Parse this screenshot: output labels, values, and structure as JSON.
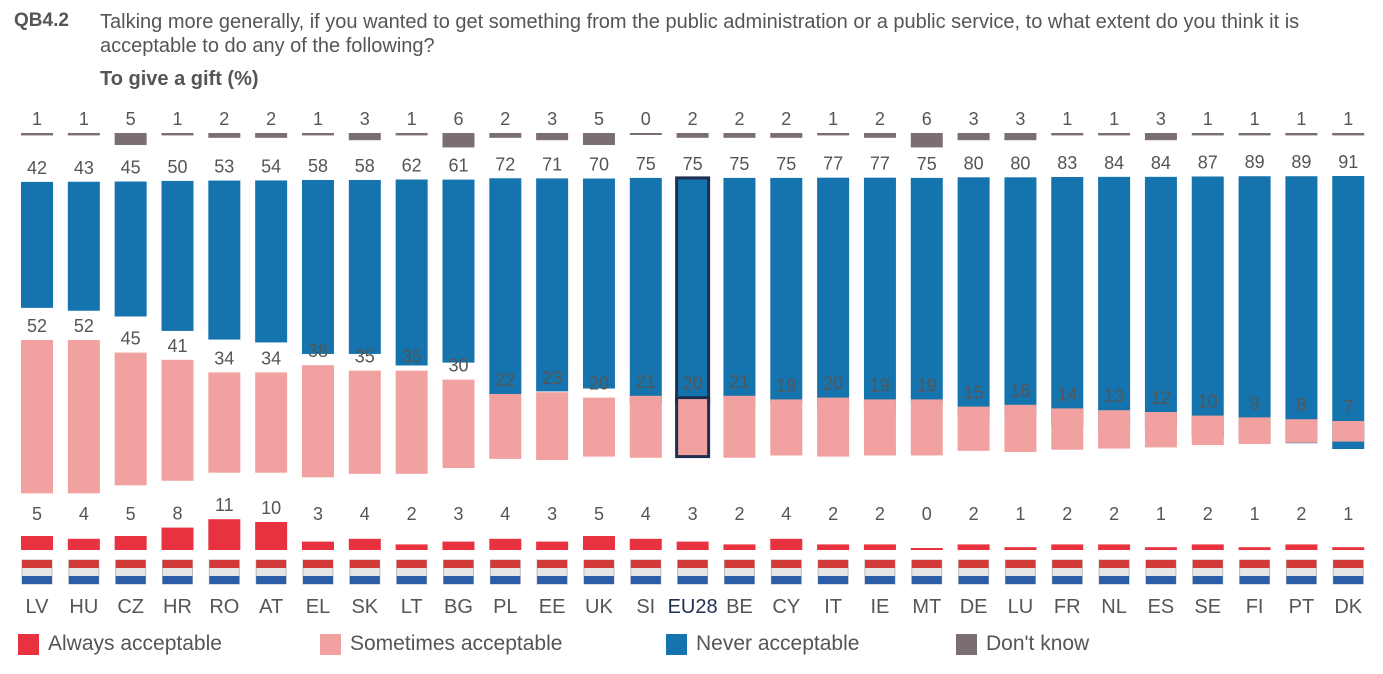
{
  "header": {
    "code": "QB4.2",
    "question": "Talking more generally, if you wanted to get something from the public administration or a public service, to what extent do you think it is acceptable to do any of the following?",
    "subtitle": "To give a gift  (%)"
  },
  "colors": {
    "always": "#e8323f",
    "sometimes": "#f2a1a1",
    "never": "#1574ad",
    "dontknow": "#7a6e72",
    "highlight_border": "#1f2f4f",
    "label": "#555555"
  },
  "legend": [
    {
      "key": "always",
      "label": "Always acceptable"
    },
    {
      "key": "sometimes",
      "label": "Sometimes acceptable"
    },
    {
      "key": "never",
      "label": "Never acceptable"
    },
    {
      "key": "dontknow",
      "label": "Don't know"
    }
  ],
  "chart_data": {
    "type": "bar",
    "title": "To give a gift  (%)",
    "categories": [
      "LV",
      "HU",
      "CZ",
      "HR",
      "RO",
      "AT",
      "EL",
      "SK",
      "LT",
      "BG",
      "PL",
      "EE",
      "UK",
      "SI",
      "EU28",
      "BE",
      "CY",
      "IT",
      "IE",
      "MT",
      "DE",
      "LU",
      "FR",
      "NL",
      "ES",
      "SE",
      "FI",
      "PT",
      "DK"
    ],
    "highlight": "EU28",
    "series": [
      {
        "name": "Don't know",
        "key": "dontknow",
        "values": [
          1,
          1,
          5,
          1,
          2,
          2,
          1,
          3,
          1,
          6,
          2,
          3,
          5,
          0,
          2,
          2,
          2,
          1,
          2,
          6,
          3,
          3,
          1,
          1,
          3,
          1,
          1,
          1,
          1
        ]
      },
      {
        "name": "Never acceptable",
        "key": "never",
        "values": [
          42,
          43,
          45,
          50,
          53,
          54,
          58,
          58,
          62,
          61,
          72,
          71,
          70,
          75,
          75,
          75,
          75,
          77,
          77,
          75,
          80,
          80,
          83,
          84,
          84,
          87,
          89,
          89,
          91
        ]
      },
      {
        "name": "Sometimes acceptable",
        "key": "sometimes",
        "values": [
          52,
          52,
          45,
          41,
          34,
          34,
          38,
          35,
          35,
          30,
          22,
          23,
          20,
          21,
          20,
          21,
          19,
          20,
          19,
          19,
          15,
          16,
          14,
          13,
          12,
          10,
          9,
          8,
          7
        ]
      },
      {
        "name": "Always acceptable",
        "key": "always",
        "values": [
          5,
          4,
          5,
          8,
          11,
          10,
          3,
          4,
          2,
          3,
          4,
          3,
          5,
          4,
          3,
          2,
          4,
          2,
          2,
          0,
          2,
          1,
          2,
          2,
          1,
          2,
          1,
          2,
          1
        ]
      }
    ]
  }
}
